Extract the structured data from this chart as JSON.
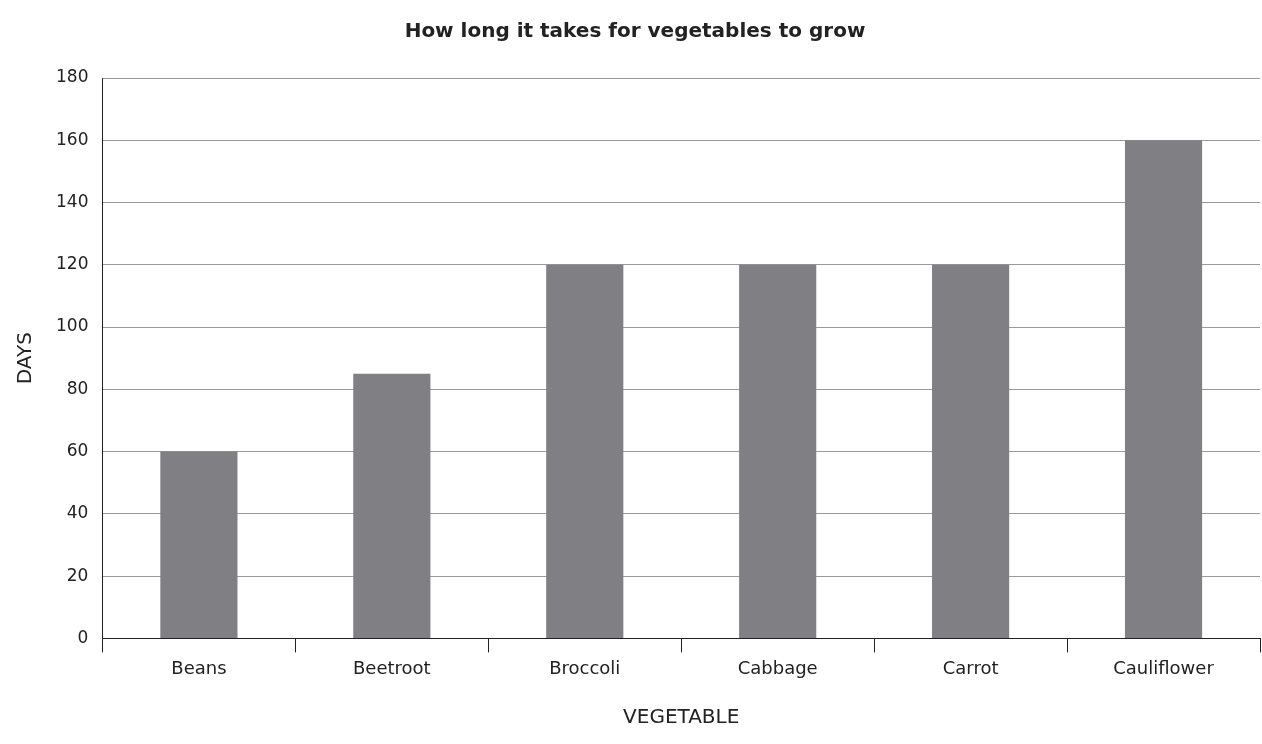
{
  "chart_data": {
    "type": "bar",
    "title": "How long it takes for vegetables to grow",
    "xlabel": "VEGETABLE",
    "ylabel": "DAYS",
    "categories": [
      "Beans",
      "Beetroot",
      "Broccoli",
      "Cabbage",
      "Carrot",
      "Cauliflower"
    ],
    "values": [
      60,
      85,
      120,
      120,
      120,
      160
    ],
    "color": "#808084",
    "ylim": [
      0,
      180
    ],
    "yticks": [
      0,
      20,
      40,
      60,
      80,
      100,
      120,
      140,
      160,
      180
    ],
    "grid": "y"
  }
}
